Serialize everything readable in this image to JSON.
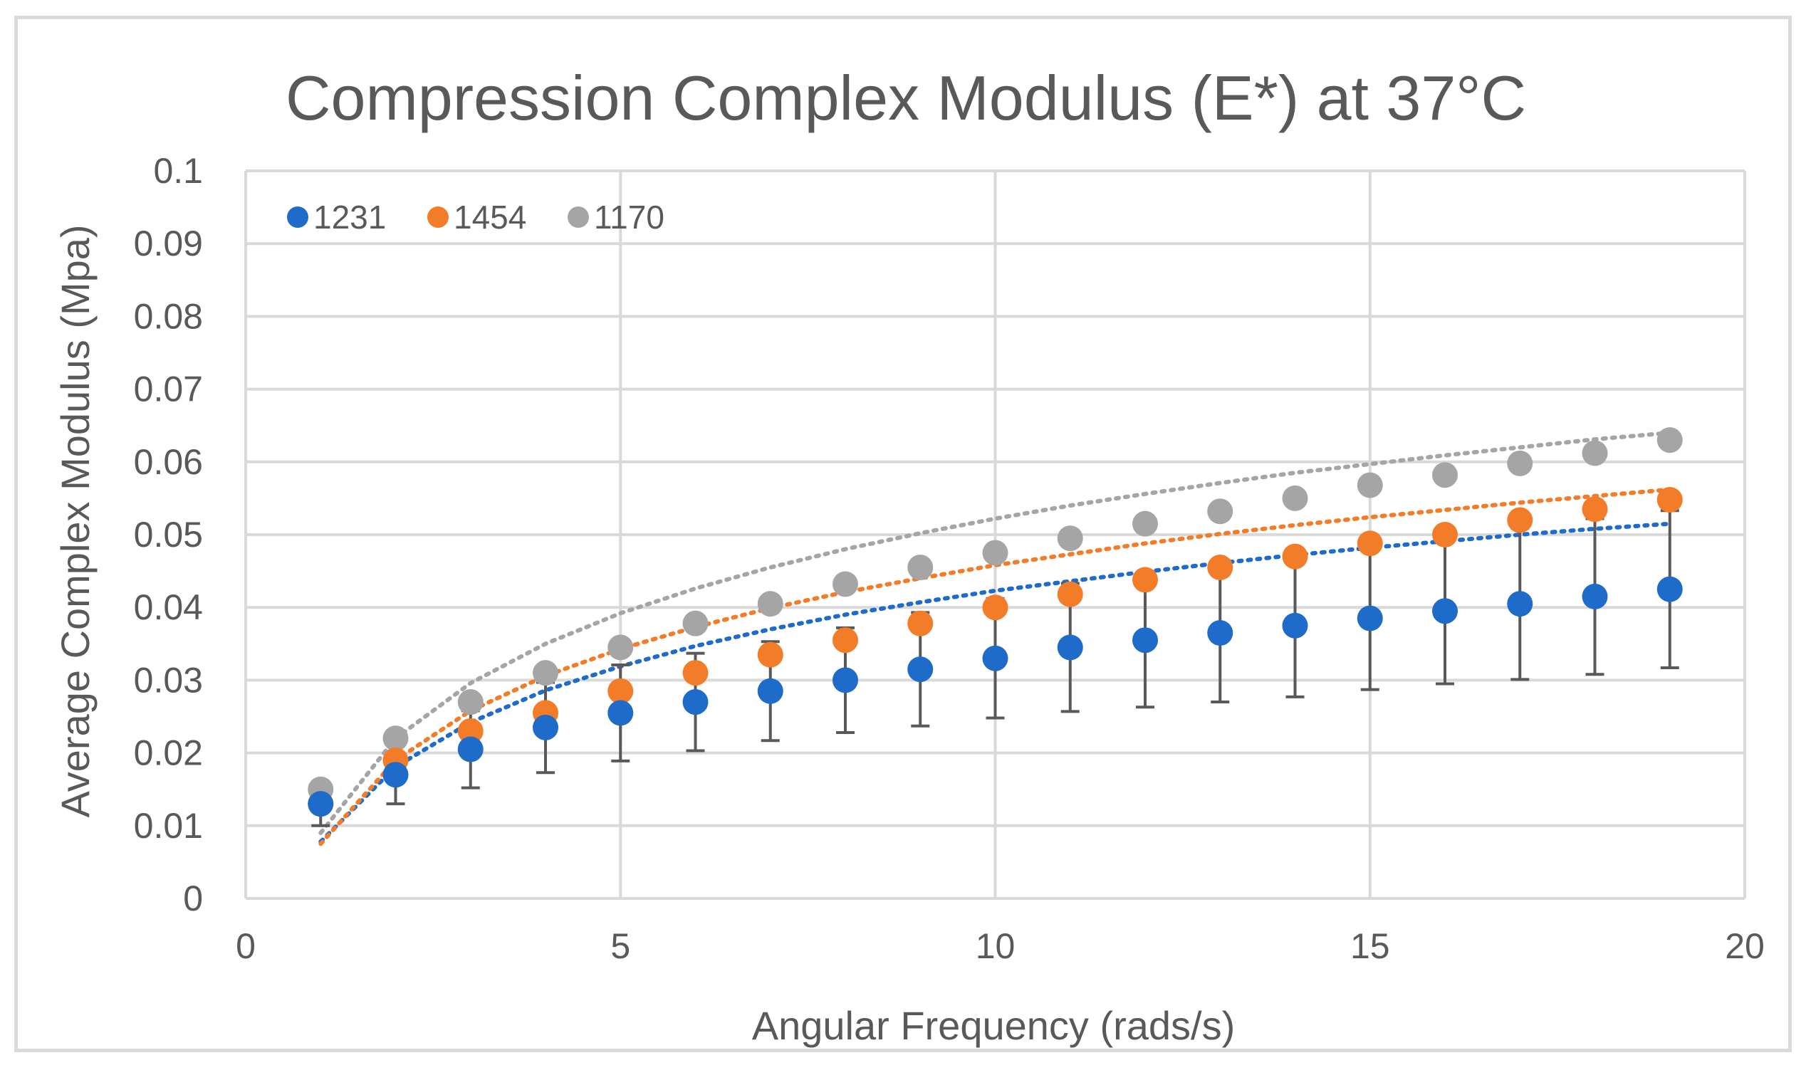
{
  "chart_data": {
    "type": "scatter",
    "title": "Compression Complex Modulus (E*) at 37°C",
    "xlabel": "Angular Frequency (rads/s)",
    "ylabel": "Average Complex Modulus (Mpa)",
    "xlim": [
      0,
      20
    ],
    "ylim": [
      0,
      0.1
    ],
    "xticks": [
      0,
      5,
      10,
      15,
      20
    ],
    "xtick_labels": [
      "0",
      "5",
      "10",
      "15",
      "20"
    ],
    "yticks": [
      0,
      0.01,
      0.02,
      0.03,
      0.04,
      0.05,
      0.06,
      0.07,
      0.08,
      0.09,
      0.1
    ],
    "ytick_labels": [
      "0",
      "0.01",
      "0.02",
      "0.03",
      "0.04",
      "0.05",
      "0.06",
      "0.07",
      "0.08",
      "0.09",
      "0.1"
    ],
    "grid": true,
    "legend_position": "top-left",
    "x": [
      1,
      2,
      3,
      4,
      5,
      6,
      7,
      8,
      9,
      10,
      11,
      12,
      13,
      14,
      15,
      16,
      17,
      18,
      19
    ],
    "series": [
      {
        "name": "1231",
        "color": "#1f6bc9",
        "values": [
          0.013,
          0.017,
          0.0205,
          0.0235,
          0.0255,
          0.027,
          0.0285,
          0.03,
          0.0315,
          0.033,
          0.0345,
          0.0355,
          0.0365,
          0.0375,
          0.0385,
          0.0395,
          0.0405,
          0.0415,
          0.0425
        ],
        "error": [
          0.003,
          0.004,
          0.0053,
          0.0062,
          0.0066,
          0.0067,
          0.0068,
          0.0072,
          0.0078,
          0.0082,
          0.0088,
          0.0092,
          0.0095,
          0.0098,
          0.0098,
          0.01,
          0.0104,
          0.0107,
          0.0108
        ],
        "trendline": [
          0.0078,
          0.0181,
          0.0242,
          0.0286,
          0.0319,
          0.0347,
          0.037,
          0.039,
          0.0407,
          0.0423,
          0.0436,
          0.0449,
          0.0461,
          0.0472,
          0.0482,
          0.0491,
          0.05,
          0.0508,
          0.0515
        ]
      },
      {
        "name": "1454",
        "color": "#f37c28",
        "values": [
          0.013,
          0.019,
          0.023,
          0.0255,
          0.0285,
          0.031,
          0.0335,
          0.0355,
          0.0378,
          0.04,
          0.0418,
          0.0438,
          0.0455,
          0.047,
          0.0488,
          0.05,
          0.052,
          0.0535,
          0.0548
        ],
        "trendline": [
          0.0075,
          0.019,
          0.0258,
          0.0306,
          0.0343,
          0.0373,
          0.0399,
          0.0421,
          0.044,
          0.0458,
          0.0473,
          0.0488,
          0.0501,
          0.0513,
          0.0524,
          0.0534,
          0.0544,
          0.0553,
          0.0562
        ]
      },
      {
        "name": "1170",
        "color": "#a5a5a5",
        "values": [
          0.015,
          0.022,
          0.027,
          0.031,
          0.0345,
          0.0378,
          0.0405,
          0.0432,
          0.0455,
          0.0475,
          0.0495,
          0.0515,
          0.0532,
          0.055,
          0.0568,
          0.0582,
          0.0598,
          0.0612,
          0.063
        ],
        "trendline": [
          0.009,
          0.022,
          0.0296,
          0.035,
          0.0392,
          0.0426,
          0.0455,
          0.048,
          0.0502,
          0.0522,
          0.054,
          0.0556,
          0.0571,
          0.0585,
          0.0597,
          0.0609,
          0.062,
          0.0631,
          0.064
        ]
      }
    ]
  }
}
